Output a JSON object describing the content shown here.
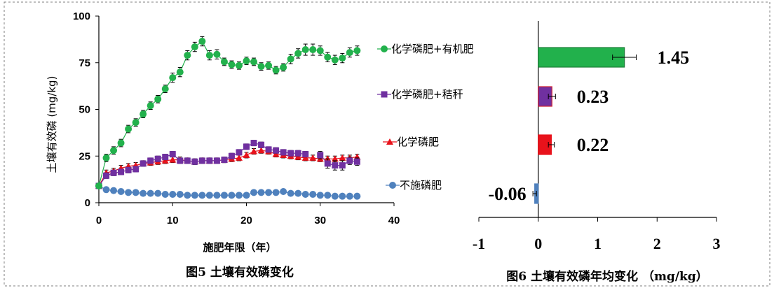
{
  "colors": {
    "green": "#22b14c",
    "purple": "#7030a0",
    "red": "#e8121b",
    "blue": "#4f81bd",
    "frame": "#7f7f7f"
  },
  "chart_data": [
    {
      "type": "line",
      "caption": "图5 土壤有效磷变化",
      "xlabel": "施肥年限（年）",
      "ylabel": "土壤有效磷 (mg/kg)",
      "xlim": [
        0,
        40
      ],
      "ylim": [
        0,
        100
      ],
      "xticks": [
        0,
        10,
        20,
        30,
        40
      ],
      "yticks": [
        0,
        25,
        50,
        75,
        100
      ],
      "legend_position": "right",
      "x": [
        0,
        1,
        2,
        3,
        4,
        5,
        6,
        7,
        8,
        9,
        10,
        11,
        12,
        13,
        14,
        15,
        16,
        17,
        18,
        19,
        20,
        21,
        22,
        23,
        24,
        25,
        26,
        27,
        28,
        29,
        30,
        31,
        32,
        33,
        34,
        35
      ],
      "series": [
        {
          "name": "化学磷肥+有机肥",
          "color_key": "green",
          "marker": "circle",
          "values": [
            9,
            24,
            28,
            32,
            39.5,
            43,
            47.5,
            52,
            55.5,
            61,
            67,
            70,
            79,
            83.5,
            86.5,
            79,
            79.5,
            75.5,
            74,
            73.5,
            76,
            75.5,
            73,
            73.5,
            71,
            72.5,
            77,
            80,
            82,
            82,
            81.5,
            78,
            76.5,
            77.5,
            80.5,
            81.5
          ],
          "errors": [
            1,
            2,
            2,
            2,
            2,
            2,
            2,
            2,
            2,
            2,
            2.5,
            2.5,
            2.5,
            2.5,
            2.5,
            2.5,
            2.5,
            2,
            2,
            2,
            2,
            2,
            2,
            2,
            2,
            2,
            2.5,
            2.5,
            3,
            3,
            2.5,
            2.5,
            2.5,
            2.5,
            2.5,
            2.5
          ]
        },
        {
          "name": "化学磷肥+秸秆",
          "color_key": "purple",
          "marker": "square",
          "values": [
            9,
            14.5,
            16,
            16.5,
            17.5,
            18,
            21,
            22.5,
            23.5,
            24.5,
            26,
            22.5,
            22.5,
            22,
            22.5,
            22.5,
            22.5,
            23,
            25,
            27,
            30,
            32,
            31,
            28.5,
            28,
            27,
            26.5,
            26.5,
            26,
            null,
            25.5,
            21,
            20,
            20,
            22.5,
            22
          ],
          "errors": [
            1,
            1.5,
            1.5,
            1.5,
            1.5,
            1.5,
            1.5,
            1.5,
            1.5,
            1.5,
            1.5,
            1.5,
            1.5,
            1.5,
            1.5,
            1.5,
            1.5,
            1.5,
            1.5,
            1.5,
            1.5,
            1.5,
            1.5,
            1.5,
            1.5,
            1.5,
            1.5,
            1.5,
            1.5,
            null,
            2,
            2.5,
            2.5,
            2.5,
            2,
            2
          ]
        },
        {
          "name": "化学磷肥",
          "color_key": "red",
          "marker": "triangle",
          "values": [
            9,
            16,
            17,
            18.5,
            19.5,
            20,
            21,
            21.5,
            22,
            22.5,
            23,
            23,
            22.5,
            22,
            22.5,
            22.5,
            22.5,
            23,
            23.5,
            24,
            25.5,
            27.5,
            28,
            27.5,
            26,
            25.5,
            25,
            24.5,
            24,
            24,
            23.5,
            23.5,
            23.5,
            24,
            24,
            24.5
          ],
          "errors": [
            1,
            1.5,
            1.5,
            1.5,
            1.5,
            1.5,
            1.5,
            1.5,
            1.5,
            1.5,
            1.5,
            1.5,
            1.5,
            1.5,
            1.5,
            1.5,
            1.5,
            1.5,
            1.5,
            1.5,
            1.5,
            1.5,
            1.5,
            1.5,
            1.5,
            1.5,
            1.5,
            1.5,
            1.5,
            1.5,
            1.5,
            1.5,
            1.5,
            1.5,
            1.5,
            1.5
          ]
        },
        {
          "name": "不施磷肥",
          "color_key": "blue",
          "marker": "circle",
          "values": [
            9,
            7,
            6.5,
            6,
            5.5,
            5.5,
            5,
            5,
            5,
            4.5,
            4.5,
            4.5,
            4,
            4,
            4,
            4,
            4,
            4,
            4,
            4,
            4,
            5.5,
            5.5,
            5.5,
            5.5,
            6,
            5,
            5,
            4.5,
            4.5,
            4,
            4,
            3.5,
            3.5,
            3.5,
            3.5
          ],
          "errors": [
            0.5,
            0.5,
            0.5,
            0.5,
            0.5,
            0.5,
            0.5,
            0.5,
            0.5,
            0.5,
            0.5,
            0.5,
            0.5,
            0.5,
            0.5,
            0.5,
            0.5,
            0.5,
            0.5,
            0.5,
            0.5,
            1,
            1,
            1,
            1,
            1,
            0.5,
            0.5,
            0.5,
            0.5,
            0.5,
            0.5,
            0.5,
            0.5,
            0.5,
            0.5
          ]
        }
      ]
    },
    {
      "type": "bar",
      "orientation": "horizontal",
      "caption": "图6 土壤有效磷年均变化 （mg/kg）",
      "xlim": [
        -1,
        3
      ],
      "xticks": [
        -1,
        0,
        1,
        2,
        3
      ],
      "categories": [
        "化学磷肥+有机肥",
        "化学磷肥+秸秆",
        "化学磷肥",
        "不施磷肥"
      ],
      "values": [
        1.45,
        0.23,
        0.22,
        -0.06
      ],
      "value_labels": [
        "1.45",
        "0.23",
        "0.22",
        "-0.06"
      ],
      "errors": [
        0.2,
        0.06,
        0.05,
        0.03
      ],
      "color_keys": [
        "green",
        "purple",
        "red",
        "blue"
      ]
    }
  ]
}
